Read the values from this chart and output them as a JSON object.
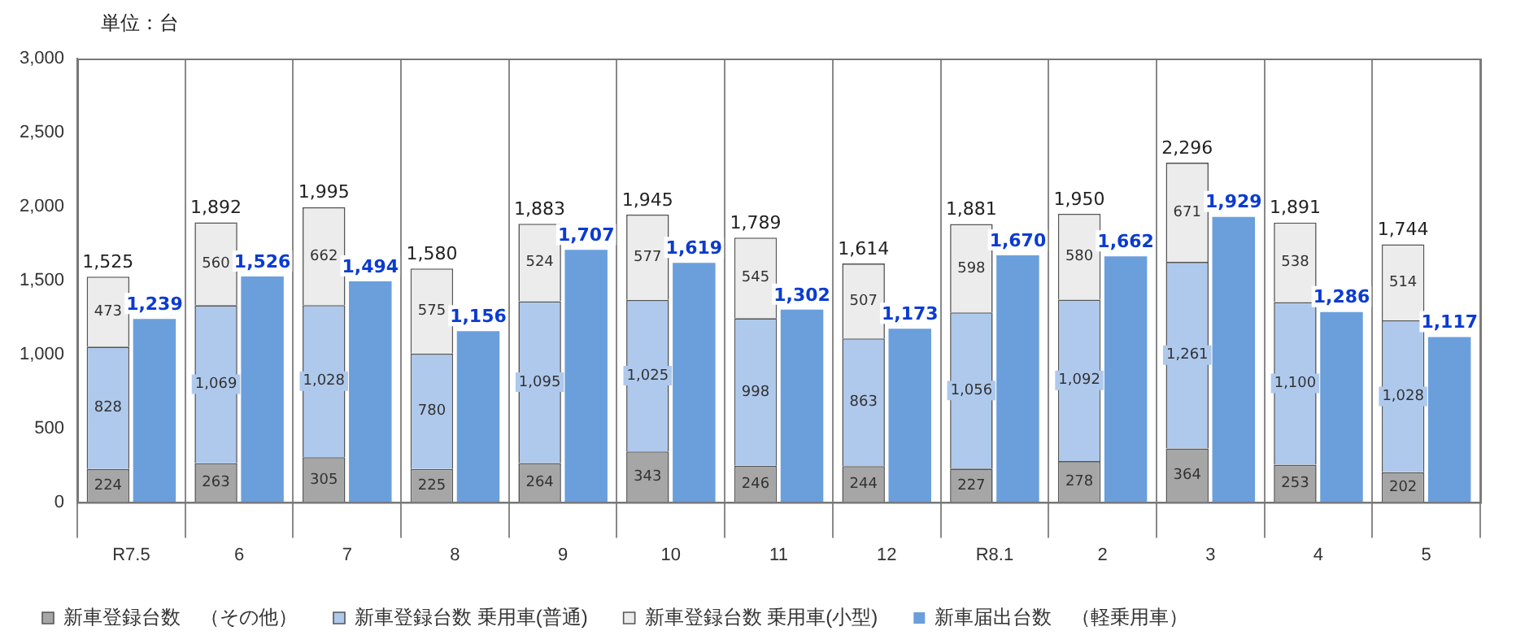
{
  "chart_data": {
    "type": "bar",
    "ylabel": "単位：台",
    "categories": [
      "R7.5",
      "6",
      "7",
      "8",
      "9",
      "10",
      "11",
      "12",
      "R8.1",
      "2",
      "3",
      "4",
      "5"
    ],
    "series": [
      {
        "name": "新車登録台数　（その他）",
        "color": "#a6a6a6",
        "values": [
          224,
          263,
          305,
          225,
          264,
          343,
          246,
          244,
          227,
          278,
          364,
          253,
          202
        ],
        "value_labels": [
          "224",
          "263",
          "305",
          "225",
          "264",
          "343",
          "246",
          "244",
          "227",
          "278",
          "364",
          "253",
          "202"
        ]
      },
      {
        "name": "新車登録台数 乗用車(普通)",
        "color": "#aec9ec",
        "values": [
          828,
          1069,
          1028,
          780,
          1095,
          1025,
          998,
          863,
          1056,
          1092,
          1261,
          1100,
          1028
        ],
        "value_labels": [
          "828",
          "1,069",
          "1,028",
          "780",
          "1,095",
          "1,025",
          "998",
          "863",
          "1,056",
          "1,092",
          "1,261",
          "1,100",
          "1,028"
        ]
      },
      {
        "name": "新車登録台数 乗用車(小型)",
        "color": "#ececec",
        "values": [
          473,
          560,
          662,
          575,
          524,
          577,
          545,
          507,
          598,
          580,
          671,
          538,
          514
        ],
        "value_labels": [
          "473",
          "560",
          "662",
          "575",
          "524",
          "577",
          "545",
          "507",
          "598",
          "580",
          "671",
          "538",
          "514"
        ]
      },
      {
        "name": "新車届出台数　（軽乗用車）",
        "color": "#6a9fdc",
        "axis": "y2",
        "values": [
          1239,
          1526,
          1494,
          1156,
          1707,
          1619,
          1302,
          1173,
          1670,
          1662,
          1929,
          1286,
          1117
        ],
        "value_labels": [
          "1,239",
          "1,526",
          "1,494",
          "1,156",
          "1,707",
          "1,619",
          "1,302",
          "1,173",
          "1,670",
          "1,662",
          "1,929",
          "1,286",
          "1,117"
        ]
      }
    ],
    "totals": [
      "1,525",
      "1,892",
      "1,995",
      "1,580",
      "1,883",
      "1,945",
      "1,789",
      "1,614",
      "1,881",
      "1,950",
      "2,296",
      "1,891",
      "1,744"
    ],
    "stacked": true,
    "grid": "x",
    "legend": "bottom",
    "ylim": [
      0,
      3000
    ],
    "yticks": [
      0,
      500,
      {
        "value": 1000,
        "label": "1,000"
      },
      {
        "value": 1500,
        "label": "1,500"
      },
      {
        "value": 2000,
        "label": "2,000"
      },
      {
        "value": 2500,
        "label": "2,500"
      },
      {
        "value": 3000,
        "label": "3,000"
      }
    ],
    "y2lim": [
      0,
      3000
    ]
  }
}
